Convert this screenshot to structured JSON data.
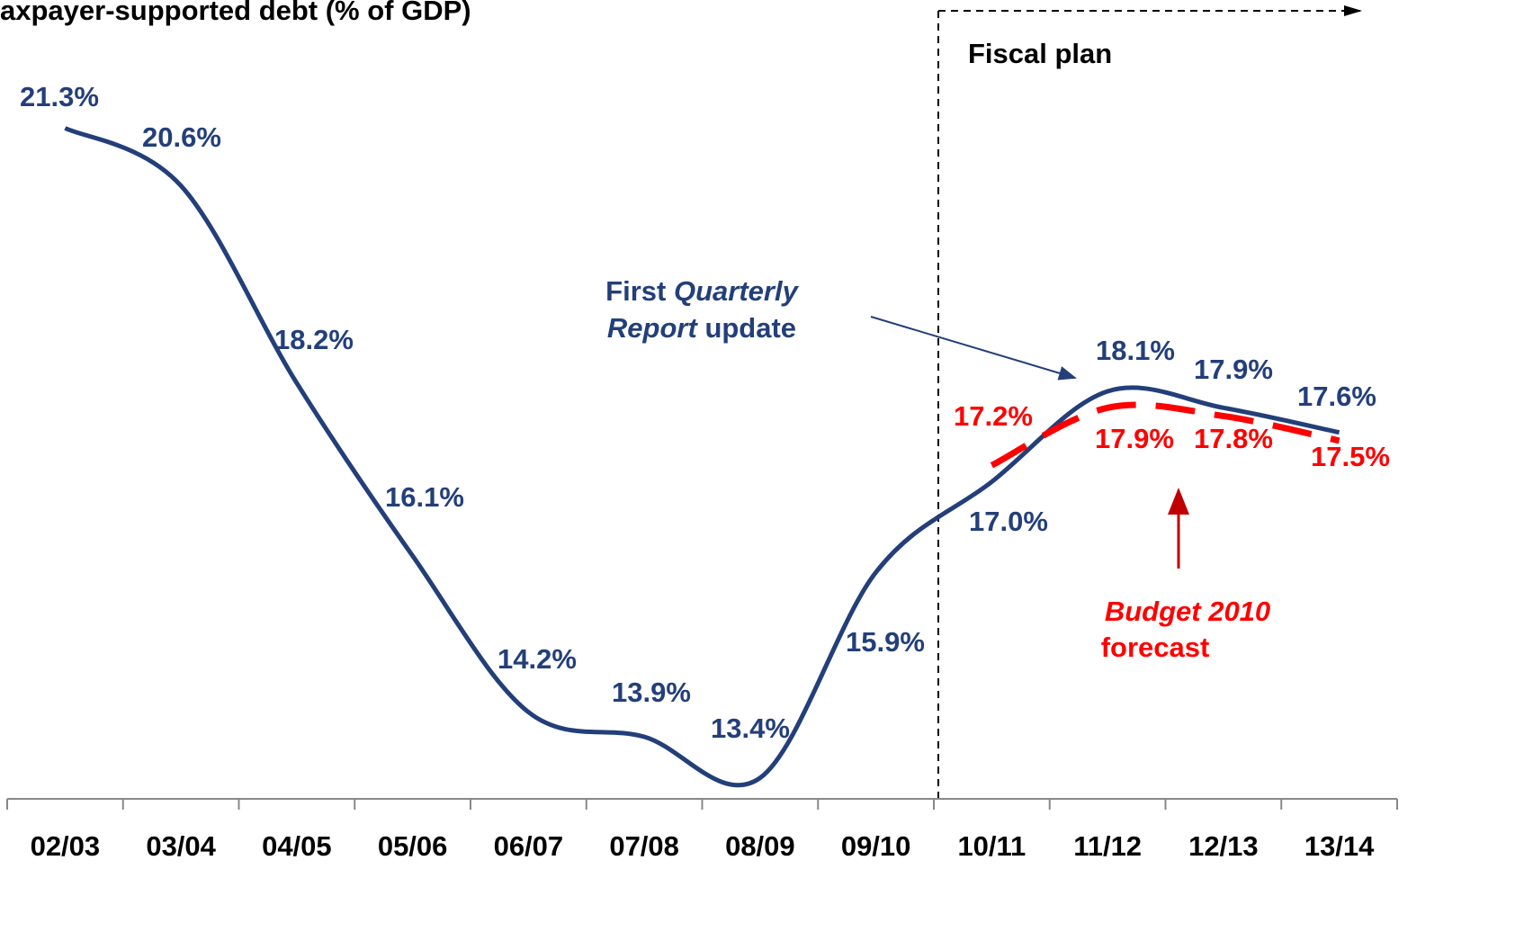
{
  "chart_data": {
    "type": "line",
    "title": "axpayer-supported debt (% of GDP)",
    "categories": [
      "02/03",
      "03/04",
      "04/05",
      "05/06",
      "06/07",
      "07/08",
      "08/09",
      "09/10",
      "10/11",
      "11/12",
      "12/13",
      "13/14"
    ],
    "series": [
      {
        "color": "#233f7a",
        "values": [
          21.3,
          20.6,
          18.2,
          16.1,
          14.2,
          13.9,
          13.4,
          15.9,
          17.0,
          18.1,
          17.9,
          17.6
        ],
        "value_labels": [
          "21.3%",
          "20.6%",
          "18.2%",
          "16.1%",
          "14.2%",
          "13.9%",
          "13.4%",
          "15.9%",
          "17.0%",
          "18.1%",
          "17.9%",
          "17.6%"
        ]
      },
      {
        "color": "#ff0000",
        "values": [
          null,
          null,
          null,
          null,
          null,
          null,
          null,
          null,
          17.2,
          17.9,
          17.8,
          17.5
        ],
        "value_labels": [
          null,
          null,
          null,
          null,
          null,
          null,
          null,
          null,
          "17.2%",
          "17.9%",
          "17.8%",
          "17.5%"
        ]
      }
    ],
    "ylim": [
      13.2,
      23
    ],
    "annotations": {
      "fiscal_plan": "Fiscal plan",
      "quarterly": [
        [
          "First",
          "Quarterly"
        ],
        [
          "Report",
          "update"
        ]
      ],
      "budget": [
        "Budget 2010",
        "forecast"
      ]
    }
  }
}
